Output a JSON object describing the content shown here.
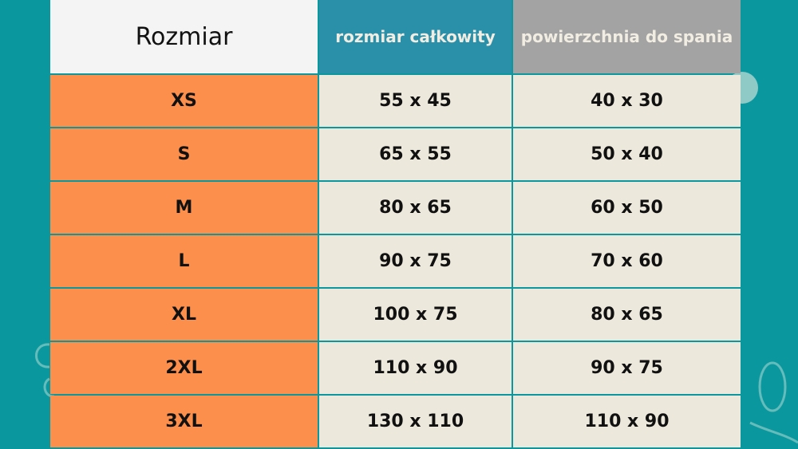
{
  "colors": {
    "background": "#0a989e",
    "size_column": "#fc8f4c",
    "value_cells": "#ede8dc",
    "header_total": "#2a8fa8",
    "header_sleep": "#a3a3a3"
  },
  "header": {
    "size": "Rozmiar",
    "total": "rozmiar całkowity",
    "sleep": "powierzchnia do spania"
  },
  "rows": [
    {
      "size": "XS",
      "total": "55 x 45",
      "sleep": "40 x 30"
    },
    {
      "size": "S",
      "total": "65 x 55",
      "sleep": "50 x 40"
    },
    {
      "size": "M",
      "total": "80 x 65",
      "sleep": "60 x 50"
    },
    {
      "size": "L",
      "total": "90 x 75",
      "sleep": "70 x 60"
    },
    {
      "size": "XL",
      "total": "100 x 75",
      "sleep": "80 x 65"
    },
    {
      "size": "2XL",
      "total": "110 x 90",
      "sleep": "90 x 75"
    },
    {
      "size": "3XL",
      "total": "130 x 110",
      "sleep": "110 x 90"
    }
  ]
}
